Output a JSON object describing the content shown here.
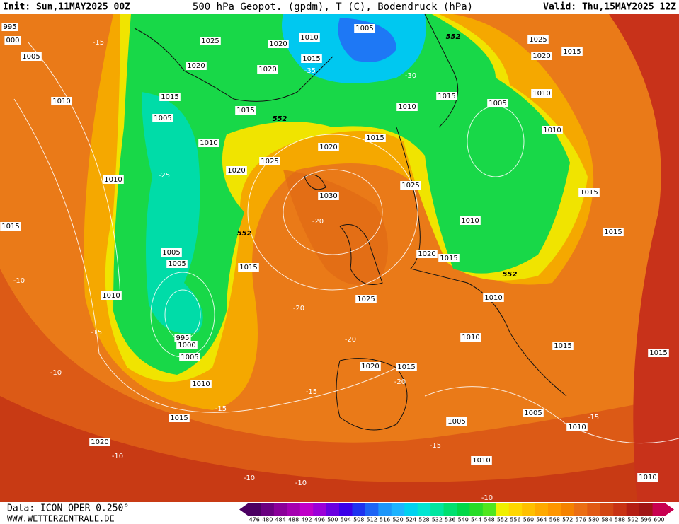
{
  "header": {
    "init": "Init: Sun,11MAY2025 00Z",
    "title": "500 hPa Geopot. (gpdm), T (C), Bodendruck (hPa)",
    "valid": "Valid: Thu,15MAY2025 12Z"
  },
  "footer": {
    "source": "Data: ICON OPER 0.250°",
    "site": "WWW.WETTERZENTRALE.DE"
  },
  "colorbar": {
    "values": [
      476,
      480,
      484,
      488,
      492,
      496,
      500,
      504,
      508,
      512,
      516,
      520,
      524,
      528,
      532,
      536,
      540,
      544,
      548,
      552,
      556,
      560,
      564,
      568,
      572,
      576,
      580,
      584,
      588,
      592,
      596,
      600
    ],
    "colors": [
      "#4b0062",
      "#6a0080",
      "#8a0099",
      "#a500b0",
      "#c000c8",
      "#9b00d8",
      "#6a00e0",
      "#3a00e8",
      "#1e32f0",
      "#1e64f5",
      "#1e96fa",
      "#1eb4ff",
      "#00d2f0",
      "#00e6d2",
      "#00e6a0",
      "#00e070",
      "#00d848",
      "#28dc28",
      "#50e61e",
      "#f0f000",
      "#ffd700",
      "#ffc000",
      "#ffaa00",
      "#ff9600",
      "#f58200",
      "#eb6e14",
      "#e15a14",
      "#d24614",
      "#c83214",
      "#b41e14",
      "#a01414",
      "#c80050"
    ]
  },
  "labels": [
    "1005",
    "1010",
    "1025",
    "1020",
    "1015",
    "1020",
    "1020",
    "-35",
    "-30",
    "1015",
    "1015",
    "1005",
    "1010",
    "1015",
    "1005",
    "1010",
    "1010",
    "1025",
    "1020",
    "1015",
    "1010",
    "1020",
    "1015",
    "1025",
    "1020",
    "1010",
    "-25",
    "1030",
    "1025",
    "1015",
    "1015",
    "-20",
    "1010",
    "1020",
    "1015",
    "1005",
    "1005",
    "1015",
    "1010",
    "1025",
    "1010",
    "-20",
    "995",
    "1000",
    "1005",
    "1010",
    "1020",
    "1015",
    "1010",
    "1015",
    "1015",
    "1015",
    "1020",
    "1005",
    "1005",
    "1010",
    "1010",
    "1010",
    "-10",
    "-10",
    "-10",
    "-10",
    "-10",
    "-10",
    "-15",
    "-15",
    "-15",
    "-15",
    "-15",
    "-15",
    "-20",
    "-20",
    "552",
    "552",
    "552",
    "552",
    "1015",
    "1005",
    "1010",
    "995",
    "000"
  ]
}
